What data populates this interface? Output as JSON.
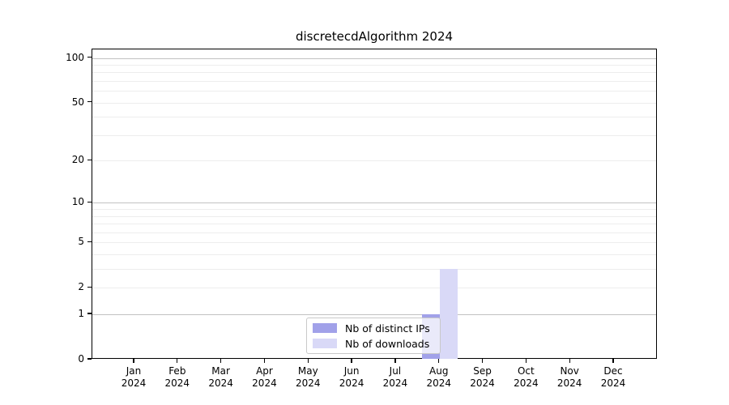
{
  "chart_data": {
    "type": "bar",
    "title": "discretecdAlgorithm 2024",
    "categories": [
      "Jan",
      "Feb",
      "Mar",
      "Apr",
      "May",
      "Jun",
      "Jul",
      "Aug",
      "Sep",
      "Oct",
      "Nov",
      "Dec"
    ],
    "year_label": "2024",
    "series": [
      {
        "name": "Nb of distinct IPs",
        "color": "#a1a1e9",
        "values": [
          0,
          0,
          0,
          0,
          0,
          0,
          0,
          1,
          0,
          0,
          0,
          0
        ]
      },
      {
        "name": "Nb of downloads",
        "color": "#d9d9f7",
        "values": [
          0,
          0,
          0,
          0,
          0,
          0,
          0,
          3,
          0,
          0,
          0,
          0
        ]
      }
    ],
    "y_scale": "log1p",
    "ylim": [
      0,
      100
    ],
    "y_ticks": [
      0,
      1,
      2,
      5,
      10,
      20,
      50,
      100
    ],
    "y_major_decades": [
      1,
      10,
      100
    ],
    "y_minor_ticks": [
      3,
      4,
      6,
      7,
      8,
      9,
      30,
      40,
      60,
      70,
      80,
      90
    ],
    "grid": "horizontal",
    "legend_position": "lower-center-inside"
  },
  "colors": {
    "background": "#ffffff",
    "axis": "#000000",
    "grid_major": "#c2c2c2",
    "grid_minor": "#ededed",
    "bar_distinct_ips": "#a1a1e9",
    "bar_downloads": "#d9d9f7"
  }
}
